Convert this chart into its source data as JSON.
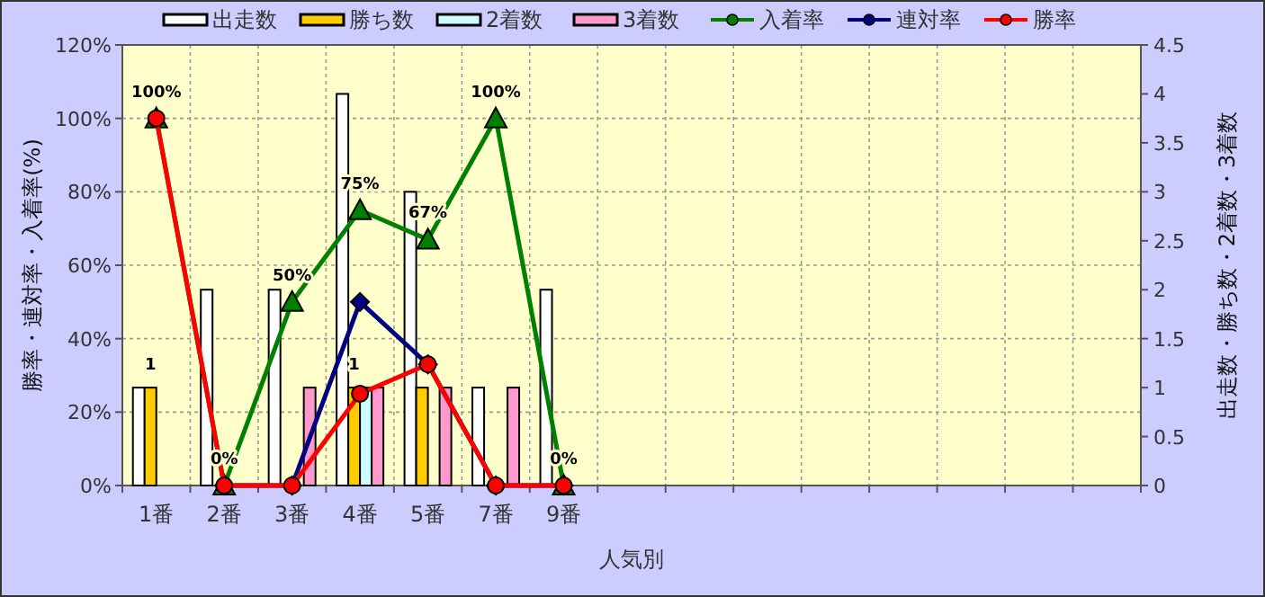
{
  "chart_data": {
    "type": "bar",
    "xlabel": "人気別",
    "ylabel": "勝率・連対率・入着率(%)",
    "y2label": "出走数・勝ち数・2着数・3着数",
    "categories": [
      "1番",
      "2番",
      "3番",
      "4番",
      "5番",
      "7番",
      "9番",
      null,
      null,
      null,
      null,
      null,
      null,
      null,
      null
    ],
    "series": [
      {
        "name": "出走数",
        "axis": "y2",
        "color": "#ffffff",
        "values": [
          1,
          2,
          2,
          4,
          3,
          1,
          2,
          null,
          null,
          null,
          null,
          null,
          null,
          null,
          null
        ]
      },
      {
        "name": "勝ち数",
        "axis": "y2",
        "color": "#ffcc00",
        "values": [
          1,
          0,
          0,
          1,
          1,
          0,
          0,
          null,
          null,
          null,
          null,
          null,
          null,
          null,
          null
        ],
        "value_labels": [
          "1",
          null,
          null,
          "1",
          null,
          null,
          null,
          null,
          null,
          null,
          null,
          null,
          null,
          null,
          null
        ]
      },
      {
        "name": "2着数",
        "axis": "y2",
        "color": "#ccffff",
        "values": [
          0,
          0,
          0,
          1,
          0,
          0,
          0,
          null,
          null,
          null,
          null,
          null,
          null,
          null,
          null
        ]
      },
      {
        "name": "3着数",
        "axis": "y2",
        "color": "#ff99cc",
        "values": [
          0,
          0,
          1,
          1,
          1,
          1,
          0,
          null,
          null,
          null,
          null,
          null,
          null,
          null,
          null
        ]
      },
      {
        "name": "入着率",
        "type": "line",
        "marker": "triangle",
        "color": "#008000",
        "values": [
          100,
          0,
          50,
          75,
          67,
          100,
          0,
          null,
          null,
          null,
          null,
          null,
          null,
          null,
          null
        ],
        "value_labels": [
          "100%",
          "0%",
          "50%",
          "75%",
          "67%",
          "100%",
          "0%",
          null,
          null,
          null,
          null,
          null,
          null,
          null,
          null
        ]
      },
      {
        "name": "連対率",
        "type": "line",
        "marker": "diamond",
        "color": "#000080",
        "values": [
          null,
          0,
          0,
          50,
          33,
          0,
          0,
          null,
          null,
          null,
          null,
          null,
          null,
          null,
          null
        ]
      },
      {
        "name": "勝率",
        "type": "line",
        "marker": "circle",
        "color": "#ff0000",
        "values": [
          100,
          0,
          0,
          25,
          33,
          0,
          0,
          null,
          null,
          null,
          null,
          null,
          null,
          null,
          null
        ]
      }
    ],
    "ylim": [
      0,
      120
    ],
    "yticks": [
      {
        "value": 0,
        "label": "0%"
      },
      {
        "value": 20,
        "label": "20%"
      },
      {
        "value": 40,
        "label": "40%"
      },
      {
        "value": 60,
        "label": "60%"
      },
      {
        "value": 80,
        "label": "80%"
      },
      {
        "value": 100,
        "label": "100%"
      },
      {
        "value": 120,
        "label": "120%"
      }
    ],
    "y2lim": [
      0,
      4.5
    ],
    "y2ticks": [
      0,
      0.5,
      1,
      1.5,
      2,
      2.5,
      3,
      3.5,
      4,
      4.5
    ],
    "grid": true,
    "legend": "top"
  }
}
